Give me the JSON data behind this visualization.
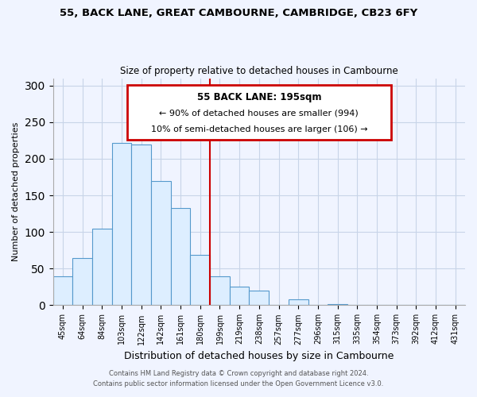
{
  "title": "55, BACK LANE, GREAT CAMBOURNE, CAMBRIDGE, CB23 6FY",
  "subtitle": "Size of property relative to detached houses in Cambourne",
  "xlabel": "Distribution of detached houses by size in Cambourne",
  "ylabel": "Number of detached properties",
  "bin_labels": [
    "45sqm",
    "64sqm",
    "84sqm",
    "103sqm",
    "122sqm",
    "142sqm",
    "161sqm",
    "180sqm",
    "199sqm",
    "219sqm",
    "238sqm",
    "257sqm",
    "277sqm",
    "296sqm",
    "315sqm",
    "335sqm",
    "354sqm",
    "373sqm",
    "392sqm",
    "412sqm",
    "431sqm"
  ],
  "bar_heights": [
    40,
    65,
    105,
    222,
    220,
    170,
    133,
    69,
    40,
    25,
    20,
    0,
    8,
    0,
    2,
    0,
    0,
    0,
    0,
    0,
    1
  ],
  "bar_color": "#ddeeff",
  "bar_edge_color": "#5599cc",
  "vline_color": "#cc0000",
  "ylim": [
    0,
    310
  ],
  "yticks": [
    0,
    50,
    100,
    150,
    200,
    250,
    300
  ],
  "annotation_title": "55 BACK LANE: 195sqm",
  "annotation_line1": "← 90% of detached houses are smaller (994)",
  "annotation_line2": "10% of semi-detached houses are larger (106) →",
  "annotation_box_color": "#cc0000",
  "footer_line1": "Contains HM Land Registry data © Crown copyright and database right 2024.",
  "footer_line2": "Contains public sector information licensed under the Open Government Licence v3.0.",
  "background_color": "#f0f4ff",
  "grid_color": "#c8d4e8"
}
